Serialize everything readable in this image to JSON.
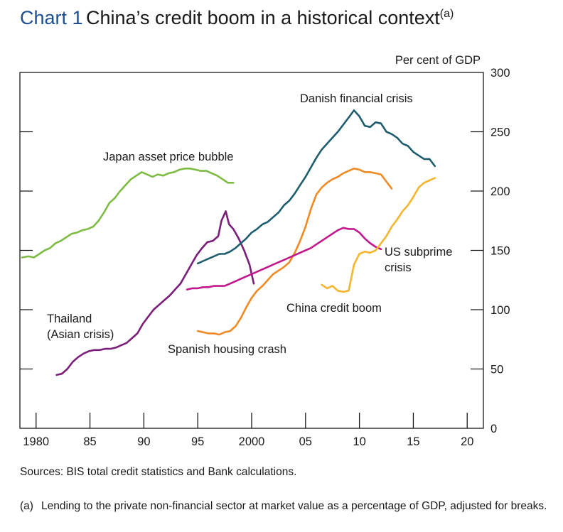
{
  "title": {
    "number": "Chart 1",
    "text": "China’s credit boom in a historical context",
    "note_marker": "(a)"
  },
  "chart_data": {
    "type": "line",
    "ylabel": "Per cent of GDP",
    "ylim": [
      0,
      300
    ],
    "yticks": [
      0,
      50,
      100,
      150,
      200,
      250,
      300
    ],
    "xlim": [
      1978.5,
      2021.5
    ],
    "xticks": [
      {
        "value": 1980,
        "label": "1980"
      },
      {
        "value": 1985,
        "label": "85"
      },
      {
        "value": 1990,
        "label": "90"
      },
      {
        "value": 1995,
        "label": "95"
      },
      {
        "value": 2000,
        "label": "2000"
      },
      {
        "value": 2005,
        "label": "05"
      },
      {
        "value": 2010,
        "label": "10"
      },
      {
        "value": 2015,
        "label": "15"
      },
      {
        "value": 2020,
        "label": "20"
      }
    ],
    "grid": false,
    "series": [
      {
        "name": "Japan asset price bubble",
        "color": "#7dbb42",
        "x": [
          1978.7,
          1979.3,
          1979.8,
          1980.3,
          1980.8,
          1981.3,
          1981.8,
          1982.3,
          1982.8,
          1983.3,
          1983.8,
          1984.3,
          1984.8,
          1985.3,
          1985.8,
          1986.3,
          1986.8,
          1987.3,
          1987.8,
          1988.3,
          1988.8,
          1989.3,
          1989.8,
          1990.3,
          1990.8,
          1991.3,
          1991.8,
          1992.3,
          1992.8,
          1993.3,
          1993.8,
          1994.3,
          1994.8,
          1995.3,
          1995.8,
          1996.3,
          1996.8,
          1997.3,
          1997.8,
          1998.3
        ],
        "values": [
          144,
          145,
          144,
          147,
          150,
          152,
          156,
          158,
          161,
          164,
          165,
          167,
          168,
          170,
          175,
          182,
          190,
          194,
          200,
          205,
          210,
          213,
          216,
          214,
          212,
          214,
          213,
          215,
          216,
          218,
          219,
          219,
          218,
          217,
          217,
          215,
          213,
          210,
          207,
          207
        ]
      },
      {
        "name": "Thailand (Asian crisis)",
        "color": "#7a1e7a",
        "x": [
          1981.9,
          1982.4,
          1982.9,
          1983.4,
          1983.9,
          1984.4,
          1984.9,
          1985.4,
          1985.9,
          1986.4,
          1986.9,
          1987.4,
          1987.9,
          1988.4,
          1988.9,
          1989.4,
          1989.9,
          1990.4,
          1990.9,
          1991.4,
          1991.9,
          1992.4,
          1992.9,
          1993.4,
          1993.9,
          1994.4,
          1994.9,
          1995.4,
          1995.9,
          1996.4,
          1996.9,
          1997.2,
          1997.6,
          1997.9,
          1998.3,
          1998.8,
          1999.3,
          1999.8,
          2000.2
        ],
        "values": [
          45,
          46,
          50,
          56,
          60,
          63,
          65,
          66,
          66,
          67,
          67,
          68,
          70,
          72,
          76,
          80,
          88,
          94,
          100,
          104,
          108,
          112,
          117,
          122,
          130,
          138,
          146,
          152,
          157,
          158,
          162,
          175,
          183,
          172,
          168,
          160,
          150,
          138,
          122
        ]
      },
      {
        "name": "Spanish housing crash",
        "color": "#f08a24",
        "x": [
          1995.0,
          1995.5,
          1996.0,
          1996.5,
          1997.0,
          1997.5,
          1998.0,
          1998.5,
          1999.0,
          1999.5,
          2000.0,
          2000.5,
          2001.0,
          2001.5,
          2002.0,
          2002.5,
          2003.0,
          2003.5,
          2004.0,
          2004.5,
          2005.0,
          2005.5,
          2006.0,
          2006.5,
          2007.0,
          2007.5,
          2008.0,
          2008.5,
          2009.0,
          2009.5,
          2010.0,
          2010.5,
          2011.0,
          2011.5,
          2012.0,
          2012.5,
          2013.0
        ],
        "values": [
          82,
          81,
          80,
          80,
          79,
          81,
          82,
          86,
          93,
          102,
          110,
          116,
          120,
          125,
          130,
          133,
          136,
          140,
          148,
          158,
          170,
          185,
          197,
          203,
          207,
          210,
          212,
          215,
          217,
          219,
          218,
          216,
          216,
          215,
          214,
          208,
          202
        ]
      },
      {
        "name": "Danish financial crisis",
        "color": "#1e5d6e",
        "x": [
          1995.0,
          1995.5,
          1996.0,
          1996.5,
          1997.0,
          1997.5,
          1998.0,
          1998.5,
          1999.0,
          1999.5,
          2000.0,
          2000.5,
          2001.0,
          2001.5,
          2002.0,
          2002.5,
          2003.0,
          2003.5,
          2004.0,
          2004.5,
          2005.0,
          2005.5,
          2006.0,
          2006.5,
          2007.0,
          2007.5,
          2008.0,
          2008.5,
          2009.0,
          2009.5,
          2010.0,
          2010.5,
          2011.0,
          2011.5,
          2012.0,
          2012.5,
          2013.0,
          2013.5,
          2014.0,
          2014.5,
          2015.0,
          2015.5,
          2016.0,
          2016.5,
          2017.0
        ],
        "values": [
          139,
          141,
          143,
          145,
          147,
          147,
          149,
          152,
          156,
          160,
          165,
          168,
          172,
          174,
          178,
          182,
          188,
          192,
          198,
          205,
          212,
          220,
          228,
          235,
          240,
          245,
          250,
          256,
          262,
          268,
          263,
          255,
          254,
          258,
          257,
          250,
          248,
          245,
          240,
          238,
          233,
          230,
          227,
          227,
          221
        ]
      },
      {
        "name": "US subprime crisis",
        "color": "#c2188c",
        "x": [
          1994.0,
          1994.5,
          1995.0,
          1995.5,
          1996.0,
          1996.5,
          1997.0,
          1997.5,
          1998.0,
          1998.5,
          1999.0,
          1999.5,
          2000.0,
          2000.5,
          2001.0,
          2001.5,
          2002.0,
          2002.5,
          2003.0,
          2003.5,
          2004.0,
          2004.5,
          2005.0,
          2005.5,
          2006.0,
          2006.5,
          2007.0,
          2007.5,
          2008.0,
          2008.5,
          2009.0,
          2009.5,
          2010.0,
          2010.5,
          2011.0,
          2011.5,
          2012.0
        ],
        "values": [
          117,
          118,
          118,
          119,
          119,
          120,
          120,
          120,
          122,
          124,
          126,
          128,
          130,
          132,
          134,
          136,
          138,
          140,
          142,
          144,
          146,
          148,
          150,
          152,
          155,
          158,
          161,
          164,
          167,
          169,
          168,
          168,
          165,
          160,
          156,
          153,
          151
        ]
      },
      {
        "name": "China credit boom",
        "color": "#f5b52e",
        "x": [
          2006.5,
          2007.0,
          2007.5,
          2008.0,
          2008.5,
          2009.0,
          2009.5,
          2010.0,
          2010.5,
          2011.0,
          2011.5,
          2012.0,
          2012.5,
          2013.0,
          2013.5,
          2014.0,
          2014.5,
          2015.0,
          2015.5,
          2016.0,
          2016.5,
          2017.0
        ],
        "values": [
          121,
          118,
          120,
          116,
          115,
          116,
          138,
          147,
          149,
          148,
          150,
          156,
          162,
          170,
          176,
          183,
          188,
          195,
          203,
          207,
          209,
          211
        ]
      }
    ],
    "annotations": [
      {
        "text": "Japan asset price bubble",
        "series": "Japan asset price bubble"
      },
      {
        "text": "Danish financial crisis",
        "series": "Danish financial crisis"
      },
      {
        "lines": [
          "Thailand",
          "(Asian crisis)"
        ],
        "series": "Thailand (Asian crisis)"
      },
      {
        "text": "Spanish housing crash",
        "series": "Spanish housing crash"
      },
      {
        "lines": [
          "US subprime",
          "crisis"
        ],
        "series": "US subprime crisis"
      },
      {
        "text": "China credit boom",
        "series": "China credit boom"
      }
    ]
  },
  "sources": "Sources: BIS total credit statistics and Bank calculations.",
  "footnote": {
    "marker": "(a)",
    "text": "Lending to the private non-financial sector at market value as a percentage of GDP, adjusted for breaks."
  }
}
